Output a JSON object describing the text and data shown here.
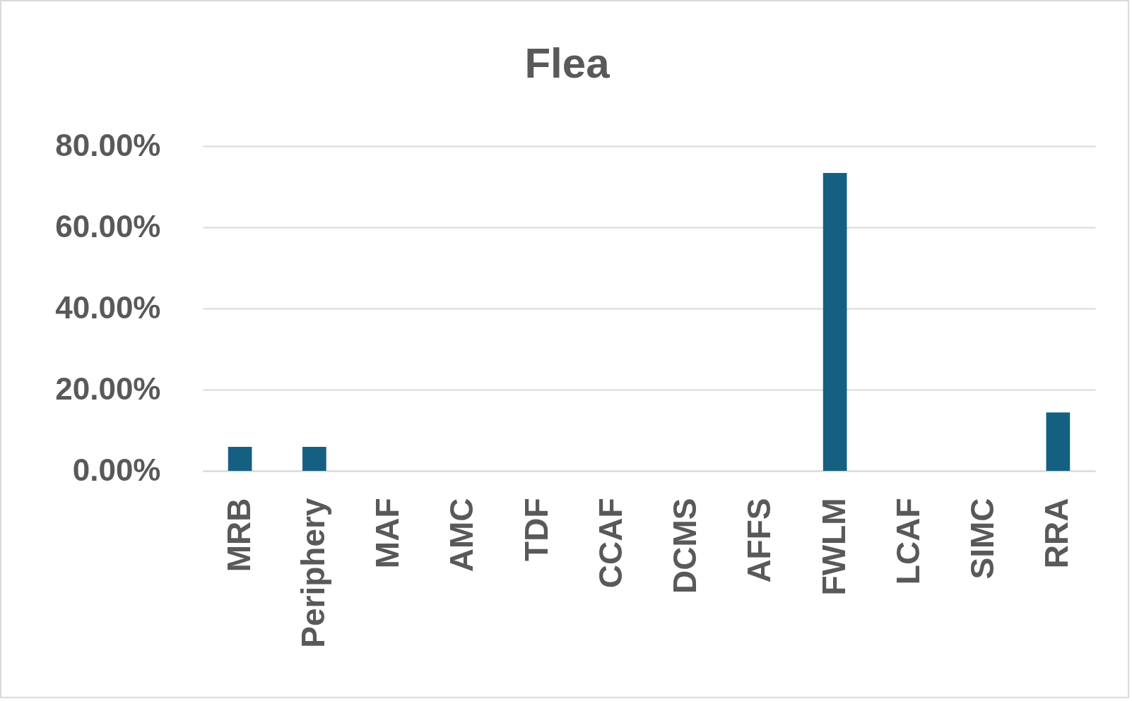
{
  "chart_data": {
    "type": "bar",
    "title": "Flea",
    "categories": [
      "MRB",
      "Periphery",
      "MAF",
      "AMC",
      "TDF",
      "CCAF",
      "DCMS",
      "AFFS",
      "FWLM",
      "LCAF",
      "SIMC",
      "RRA"
    ],
    "values": [
      5.9,
      5.9,
      0,
      0,
      0,
      0,
      0,
      0,
      73.4,
      0,
      0,
      14.4
    ],
    "color": "#156082",
    "ylim": [
      0,
      80
    ],
    "yticks": [
      {
        "value": 0,
        "label": "0.00%"
      },
      {
        "value": 20,
        "label": "20.00%"
      },
      {
        "value": 40,
        "label": "40.00%"
      },
      {
        "value": 60,
        "label": "60.00%"
      },
      {
        "value": 80,
        "label": "80.00%"
      }
    ],
    "grid": "y"
  }
}
